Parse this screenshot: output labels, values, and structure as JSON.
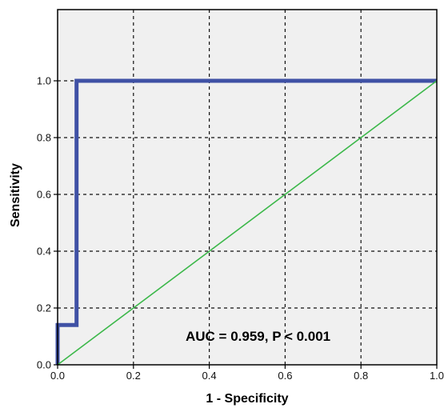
{
  "chart_data": {
    "type": "line",
    "title": "",
    "xlabel": "1 - Specificity",
    "ylabel": "Sensitivity",
    "xlim": [
      0.0,
      1.0
    ],
    "ylim": [
      0.0,
      1.0
    ],
    "x_ticks": [
      "0.0",
      "0.2",
      "0.4",
      "0.6",
      "0.8",
      "1.0"
    ],
    "y_ticks": [
      "0.0",
      "0.2",
      "0.4",
      "0.6",
      "0.8",
      "1.0"
    ],
    "grid": true,
    "grid_style": "dashed",
    "background_color": "#f0f0f0",
    "annotation": "AUC = 0.959, P < 0.001",
    "series": [
      {
        "kind": "step",
        "color": "#3f51a5",
        "points": [
          {
            "x": 0.0,
            "y": 0.0
          },
          {
            "x": 0.0,
            "y": 0.14
          },
          {
            "x": 0.05,
            "y": 0.14
          },
          {
            "x": 0.05,
            "y": 1.0
          },
          {
            "x": 1.0,
            "y": 1.0
          }
        ]
      },
      {
        "kind": "reference",
        "color": "#3cb84a",
        "points": [
          {
            "x": 0.0,
            "y": 0.0
          },
          {
            "x": 1.0,
            "y": 1.0
          }
        ]
      }
    ]
  }
}
